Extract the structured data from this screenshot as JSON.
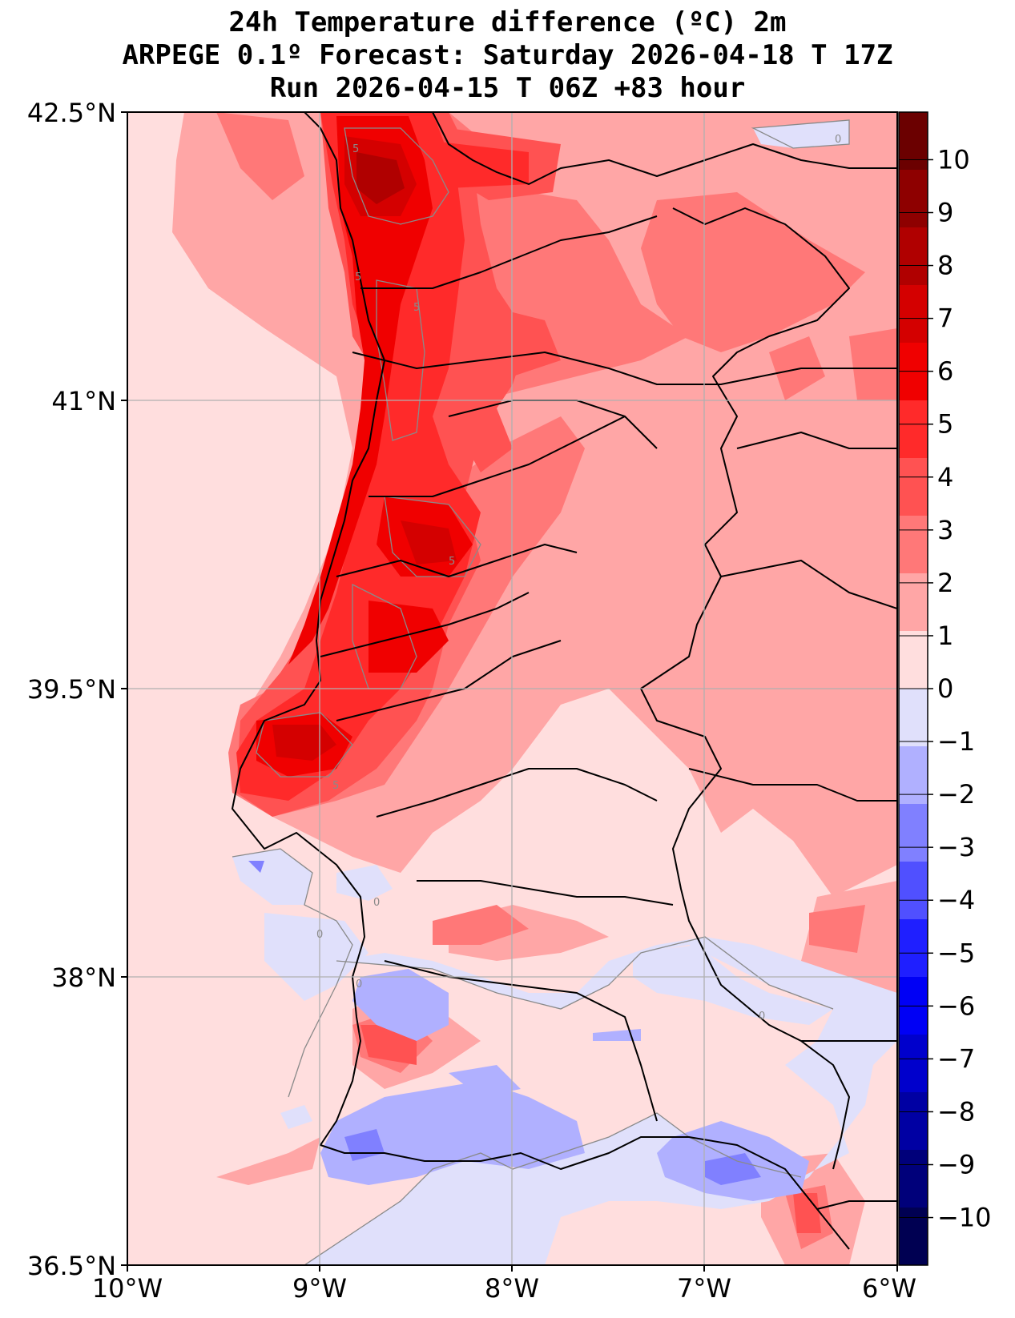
{
  "title": {
    "line1": "24h Temperature difference (ºC) 2m",
    "line2": "ARPEGE 0.1º Forecast: Saturday 2026-04-18 T 17Z",
    "line3": "Run 2026-04-15 T 06Z +83 hour"
  },
  "map": {
    "region": "Portugal / western Iberia",
    "lat_labels": [
      "42.5°N",
      "41°N",
      "39.5°N",
      "38°N",
      "36.5°N"
    ],
    "lon_labels": [
      "10°W",
      "9°W",
      "8°W",
      "7°W",
      "6°W"
    ],
    "contour_labels": [
      "5",
      "5",
      "5",
      "5",
      "5",
      "0",
      "0",
      "0",
      "0",
      "0"
    ]
  },
  "colorbar": {
    "tick_labels": [
      "10",
      "9",
      "8",
      "7",
      "6",
      "5",
      "4",
      "3",
      "2",
      "1",
      "0",
      "−1",
      "−2",
      "−3",
      "−4",
      "−5",
      "−6",
      "−7",
      "−8",
      "−9",
      "−10"
    ],
    "colors": [
      "#6b0000",
      "#8e0000",
      "#b00000",
      "#d40000",
      "#f00000",
      "#ff2a2a",
      "#ff5252",
      "#ff7878",
      "#ffa6a6",
      "#ffdede",
      "#e0e0fb",
      "#b0b0ff",
      "#8080ff",
      "#5050ff",
      "#1f1fff",
      "#0000f5",
      "#0000cc",
      "#0000a3",
      "#00007a",
      "#000052"
    ]
  }
}
